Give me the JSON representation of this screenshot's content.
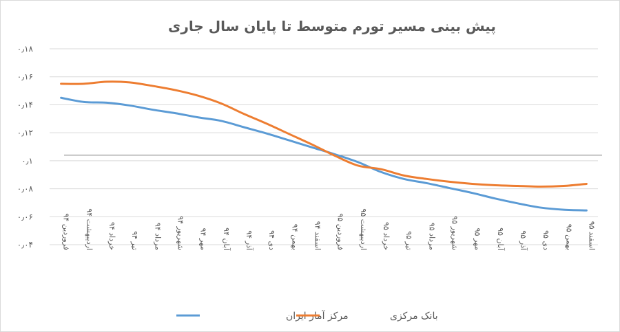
{
  "chart_data": {
    "type": "line",
    "title": "پیش بینی مسیر تورم متوسط تا پایان سال جاری",
    "xlabel": "",
    "ylabel": "",
    "ylim": [
      0.04,
      0.18
    ],
    "yticks": [
      0.18,
      0.16,
      0.14,
      0.12,
      0.1,
      0.08,
      0.06,
      0.04
    ],
    "ytick_labels": [
      "۰٫۱۸",
      "۰٫۱۶",
      "۰٫۱۴",
      "۰٫۱۲",
      "۰٫۱",
      "۰٫۰۸",
      "۰٫۰۶",
      "۰٫۰۴"
    ],
    "grid": true,
    "legend_position": "bottom",
    "categories": [
      "فروردین ۹۴",
      "اردیبهشت ۹۴",
      "خرداد ۹۴",
      "تیر ۹۴",
      "مرداد ۹۴",
      "شهریور ۹۴",
      "مهر ۹۴",
      "آبان ۹۴",
      "آذر ۹۴",
      "دی ۹۴",
      "بهمن ۹۴",
      "اسفند ۹۴",
      "فروردین ۹۵",
      "اردیبهشت ۹۵",
      "خرداد ۹۵",
      "تیر ۹۵",
      "مرداد ۹۵",
      "شهریور ۹۵",
      "مهر ۹۵",
      "آبان ۹۵",
      "آذر ۹۵",
      "دی ۹۵",
      "بهمن ۹۵",
      "اسفند ۹۵"
    ],
    "series": [
      {
        "name": "مرکز آمار ایران",
        "color": "#5B9BD5",
        "values": [
          0.145,
          0.142,
          0.1415,
          0.1395,
          0.1365,
          0.134,
          0.131,
          0.1285,
          0.124,
          0.1195,
          0.1145,
          0.1095,
          0.1045,
          0.099,
          0.092,
          0.087,
          0.084,
          0.0805,
          0.077,
          0.073,
          0.0695,
          0.0665,
          0.065,
          0.0645
        ]
      },
      {
        "name": "بانک مرکزی",
        "color": "#ED7D31",
        "values": [
          0.155,
          0.155,
          0.1565,
          0.156,
          0.1535,
          0.1505,
          0.1465,
          0.141,
          0.1335,
          0.1265,
          0.119,
          0.1115,
          0.1035,
          0.0965,
          0.094,
          0.0895,
          0.087,
          0.085,
          0.0835,
          0.0825,
          0.082,
          0.0815,
          0.082,
          0.0835
        ]
      }
    ],
    "reference_line": {
      "value": 0.104,
      "color": "#7f7f7f"
    }
  }
}
